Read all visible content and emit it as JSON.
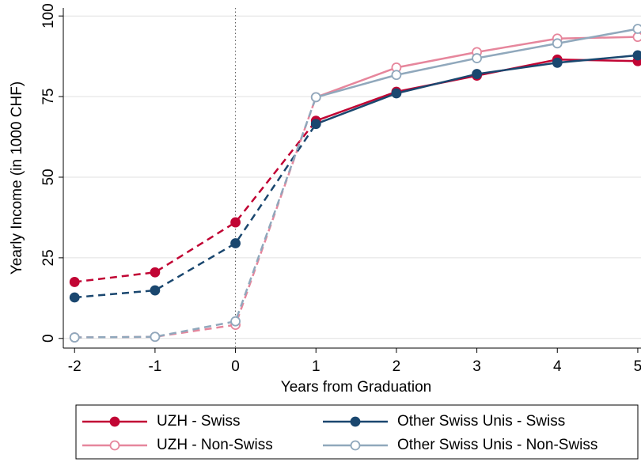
{
  "chart_data": {
    "type": "line",
    "x_label": "Years from Graduation",
    "y_label": "Yearly Income (in 1000 CHF)",
    "x": [
      -2,
      -1,
      0,
      1,
      2,
      3,
      4,
      5
    ],
    "series": [
      {
        "name": "UZH - Swiss",
        "color": "#c10534",
        "marker": "filled",
        "values": [
          17.5,
          20.5,
          36,
          67.5,
          76.5,
          81.5,
          86.5,
          86
        ]
      },
      {
        "name": "UZH - Non-Swiss",
        "color": "#e6869c",
        "marker": "hollow",
        "values": [
          0.3,
          0.5,
          4.2,
          74.8,
          84,
          88.8,
          93,
          93.5
        ]
      },
      {
        "name": "Other Swiss Unis - Swiss",
        "color": "#1a476f",
        "marker": "filled",
        "values": [
          12.7,
          14.9,
          29.5,
          66.5,
          76,
          82,
          85.5,
          87.8
        ]
      },
      {
        "name": "Other Swiss Unis - Non-Swiss",
        "color": "#90a8bc",
        "marker": "hollow",
        "values": [
          0.3,
          0.5,
          5.3,
          74.8,
          81.7,
          86.9,
          91.5,
          96
        ]
      }
    ],
    "dashed_x_max": 1,
    "vline": 0,
    "xlim": [
      -2.14,
      5.04
    ],
    "xticks": [
      -2,
      -1,
      0,
      1,
      2,
      3,
      4,
      5
    ],
    "ylim": [
      -3,
      102.5
    ],
    "yticks": [
      0,
      25,
      50,
      75,
      100
    ],
    "grid": true
  }
}
